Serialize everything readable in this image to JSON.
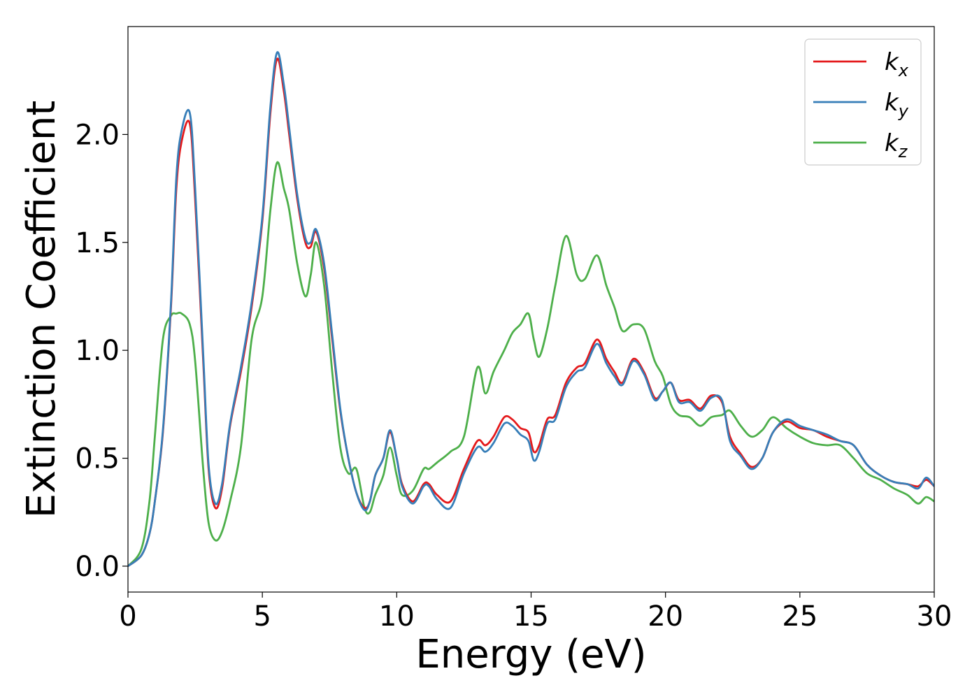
{
  "chart_data": {
    "type": "line",
    "title": "",
    "xlabel": "Energy (eV)",
    "ylabel": "Extinction Coefficient",
    "xlim": [
      0,
      30
    ],
    "ylim": [
      -0.12,
      2.5
    ],
    "xticks": [
      0,
      5,
      10,
      15,
      20,
      25,
      30
    ],
    "xtick_labels": [
      "0",
      "5",
      "10",
      "15",
      "20",
      "25",
      "30"
    ],
    "yticks": [
      0.0,
      0.5,
      1.0,
      1.5,
      2.0
    ],
    "ytick_labels": [
      "0.0",
      "0.5",
      "1.0",
      "1.5",
      "2.0"
    ],
    "grid": false,
    "legend": {
      "position": "top-right"
    },
    "series": [
      {
        "name": "k",
        "subscript": "x",
        "color": "#e41a1c",
        "x": [
          0,
          0.5,
          0.8,
          1.0,
          1.3,
          1.6,
          1.8,
          2.0,
          2.3,
          2.5,
          2.8,
          3.0,
          3.25,
          3.5,
          3.8,
          4.2,
          4.6,
          5.0,
          5.3,
          5.55,
          5.8,
          6.0,
          6.3,
          6.6,
          6.8,
          7.0,
          7.3,
          7.6,
          7.9,
          8.2,
          8.5,
          8.8,
          9.0,
          9.2,
          9.5,
          9.75,
          10.0,
          10.2,
          10.6,
          11.0,
          11.2,
          11.5,
          12.0,
          12.5,
          13.0,
          13.3,
          13.6,
          14.0,
          14.3,
          14.6,
          14.9,
          15.1,
          15.3,
          15.6,
          15.9,
          16.3,
          16.7,
          17.0,
          17.45,
          17.8,
          18.1,
          18.4,
          18.8,
          19.2,
          19.6,
          19.9,
          20.2,
          20.5,
          20.9,
          21.3,
          21.7,
          22.1,
          22.4,
          22.8,
          23.2,
          23.6,
          24.0,
          24.5,
          25.0,
          25.5,
          26.0,
          26.5,
          27.0,
          27.5,
          28.0,
          28.5,
          29.0,
          29.4,
          29.7,
          30.0
        ],
        "y": [
          0.0,
          0.05,
          0.15,
          0.3,
          0.62,
          1.2,
          1.75,
          1.97,
          2.05,
          1.7,
          0.95,
          0.45,
          0.27,
          0.36,
          0.65,
          0.9,
          1.2,
          1.6,
          2.1,
          2.35,
          2.2,
          2.0,
          1.7,
          1.5,
          1.48,
          1.55,
          1.38,
          1.05,
          0.72,
          0.5,
          0.34,
          0.27,
          0.3,
          0.42,
          0.5,
          0.62,
          0.5,
          0.38,
          0.3,
          0.38,
          0.38,
          0.33,
          0.3,
          0.45,
          0.58,
          0.56,
          0.6,
          0.69,
          0.68,
          0.64,
          0.62,
          0.53,
          0.56,
          0.68,
          0.7,
          0.85,
          0.92,
          0.94,
          1.05,
          0.96,
          0.9,
          0.85,
          0.96,
          0.9,
          0.78,
          0.81,
          0.85,
          0.77,
          0.77,
          0.73,
          0.79,
          0.76,
          0.6,
          0.52,
          0.46,
          0.5,
          0.62,
          0.67,
          0.64,
          0.63,
          0.6,
          0.58,
          0.56,
          0.47,
          0.42,
          0.39,
          0.38,
          0.37,
          0.4,
          0.37
        ]
      },
      {
        "name": "k",
        "subscript": "y",
        "color": "#377eb8",
        "x": [
          0,
          0.5,
          0.8,
          1.0,
          1.3,
          1.6,
          1.8,
          2.0,
          2.3,
          2.5,
          2.8,
          3.0,
          3.25,
          3.5,
          3.8,
          4.2,
          4.6,
          5.0,
          5.3,
          5.55,
          5.8,
          6.0,
          6.3,
          6.6,
          6.8,
          7.0,
          7.3,
          7.6,
          7.9,
          8.2,
          8.5,
          8.8,
          9.0,
          9.2,
          9.5,
          9.75,
          10.0,
          10.2,
          10.6,
          11.0,
          11.2,
          11.5,
          12.0,
          12.5,
          13.0,
          13.3,
          13.6,
          14.0,
          14.3,
          14.6,
          14.9,
          15.1,
          15.3,
          15.6,
          15.9,
          16.3,
          16.7,
          17.0,
          17.45,
          17.8,
          18.1,
          18.4,
          18.8,
          19.2,
          19.6,
          19.9,
          20.2,
          20.5,
          20.9,
          21.3,
          21.7,
          22.1,
          22.4,
          22.8,
          23.2,
          23.6,
          24.0,
          24.5,
          25.0,
          25.5,
          26.0,
          26.5,
          27.0,
          27.5,
          28.0,
          28.5,
          29.0,
          29.4,
          29.7,
          30.0
        ],
        "y": [
          0.0,
          0.05,
          0.15,
          0.3,
          0.63,
          1.22,
          1.8,
          2.02,
          2.1,
          1.75,
          0.98,
          0.47,
          0.29,
          0.38,
          0.66,
          0.92,
          1.22,
          1.62,
          2.13,
          2.38,
          2.23,
          2.03,
          1.72,
          1.52,
          1.5,
          1.56,
          1.4,
          1.07,
          0.73,
          0.5,
          0.34,
          0.26,
          0.3,
          0.42,
          0.5,
          0.63,
          0.5,
          0.37,
          0.29,
          0.37,
          0.37,
          0.31,
          0.27,
          0.43,
          0.55,
          0.53,
          0.57,
          0.66,
          0.65,
          0.61,
          0.58,
          0.49,
          0.53,
          0.66,
          0.68,
          0.83,
          0.9,
          0.92,
          1.03,
          0.94,
          0.88,
          0.84,
          0.95,
          0.89,
          0.77,
          0.81,
          0.85,
          0.76,
          0.76,
          0.72,
          0.78,
          0.77,
          0.58,
          0.51,
          0.45,
          0.5,
          0.62,
          0.68,
          0.65,
          0.63,
          0.61,
          0.58,
          0.56,
          0.47,
          0.42,
          0.39,
          0.38,
          0.36,
          0.41,
          0.37
        ]
      },
      {
        "name": "k",
        "subscript": "z",
        "color": "#4daf4a",
        "x": [
          0,
          0.5,
          0.8,
          1.0,
          1.3,
          1.6,
          1.8,
          2.0,
          2.3,
          2.5,
          2.8,
          3.0,
          3.25,
          3.5,
          3.8,
          4.2,
          4.6,
          5.0,
          5.3,
          5.55,
          5.8,
          6.0,
          6.3,
          6.6,
          6.8,
          7.0,
          7.3,
          7.6,
          7.9,
          8.2,
          8.5,
          8.8,
          9.0,
          9.2,
          9.5,
          9.75,
          10.0,
          10.2,
          10.6,
          11.0,
          11.2,
          11.5,
          12.0,
          12.5,
          13.0,
          13.3,
          13.6,
          14.0,
          14.3,
          14.6,
          14.9,
          15.1,
          15.3,
          15.6,
          15.9,
          16.3,
          16.7,
          17.0,
          17.45,
          17.8,
          18.1,
          18.4,
          18.8,
          19.2,
          19.6,
          19.9,
          20.2,
          20.5,
          20.9,
          21.3,
          21.7,
          22.1,
          22.4,
          22.8,
          23.2,
          23.6,
          24.0,
          24.5,
          25.0,
          25.5,
          26.0,
          26.5,
          27.0,
          27.5,
          28.0,
          28.5,
          29.0,
          29.4,
          29.7,
          30.0
        ],
        "y": [
          0.0,
          0.08,
          0.3,
          0.6,
          1.05,
          1.16,
          1.17,
          1.17,
          1.12,
          0.95,
          0.45,
          0.2,
          0.12,
          0.16,
          0.3,
          0.55,
          1.05,
          1.25,
          1.65,
          1.87,
          1.75,
          1.65,
          1.4,
          1.25,
          1.35,
          1.5,
          1.3,
          0.9,
          0.55,
          0.43,
          0.45,
          0.27,
          0.25,
          0.33,
          0.42,
          0.55,
          0.42,
          0.33,
          0.35,
          0.45,
          0.45,
          0.48,
          0.53,
          0.6,
          0.92,
          0.8,
          0.9,
          1.0,
          1.08,
          1.12,
          1.17,
          1.05,
          0.97,
          1.1,
          1.3,
          1.53,
          1.35,
          1.33,
          1.44,
          1.3,
          1.2,
          1.09,
          1.12,
          1.1,
          0.95,
          0.88,
          0.75,
          0.7,
          0.69,
          0.65,
          0.69,
          0.7,
          0.72,
          0.65,
          0.6,
          0.63,
          0.69,
          0.64,
          0.6,
          0.57,
          0.56,
          0.56,
          0.5,
          0.43,
          0.4,
          0.36,
          0.33,
          0.29,
          0.32,
          0.3
        ]
      }
    ]
  }
}
